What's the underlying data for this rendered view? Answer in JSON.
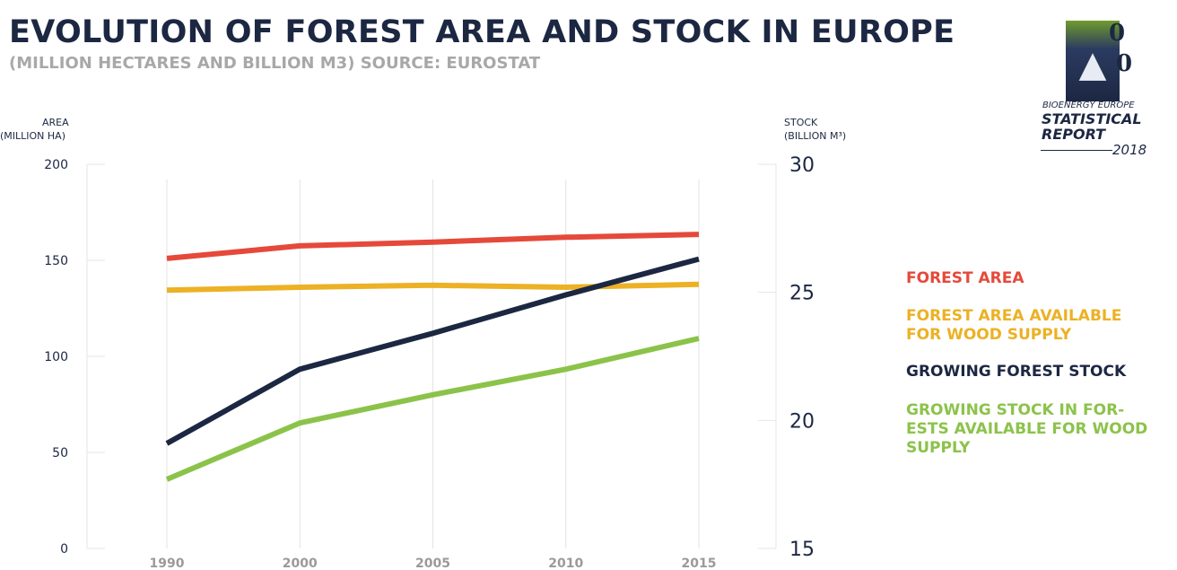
{
  "header": {
    "title": "EVOLUTION OF FOREST AREA AND STOCK IN EUROPE",
    "subtitle": "(MILLION HECTARES AND BILLION M3) SOURCE: EUROSTAT"
  },
  "logo": {
    "line1": "BIOENERGY EUROPE",
    "line2": "STATISTICAL",
    "line3": "REPORT",
    "year": "2018",
    "digits": [
      "0",
      "0"
    ]
  },
  "axes": {
    "left_title_line1": "AREA",
    "left_title_line2": "(MILLION HA)",
    "right_title_line1": "STOCK",
    "right_title_line2": "(BILLION M³)"
  },
  "chart_data": {
    "type": "line",
    "x": [
      "1990",
      "2000",
      "2005",
      "2010",
      "2015"
    ],
    "ylim_left": [
      0,
      200
    ],
    "yticks_left": [
      "0",
      "50",
      "100",
      "150",
      "200"
    ],
    "ylim_right": [
      15,
      30
    ],
    "yticks_right": [
      "15",
      "20",
      "25",
      "30"
    ],
    "grid": "vertical",
    "legend_position": "right",
    "series": [
      {
        "name": "FOREST AREA",
        "axis": "left",
        "color": "#e5493a",
        "values": [
          151,
          157.5,
          159.5,
          162,
          163.5
        ]
      },
      {
        "name": "FOREST AREA AVAILABLE\nFOR WOOD SUPPLY",
        "axis": "left",
        "color": "#ecb124",
        "values": [
          134.5,
          136,
          137,
          136,
          137.5
        ]
      },
      {
        "name": "GROWING FOREST STOCK",
        "axis": "right",
        "color": "#1c2742",
        "values": [
          19.1,
          22.0,
          23.4,
          24.9,
          26.3
        ]
      },
      {
        "name": "GROWING STOCK IN FOR-\nESTS AVAILABLE FOR WOOD\nSUPPLY",
        "axis": "right",
        "color": "#8bc34a",
        "values": [
          17.7,
          19.9,
          21.0,
          22.0,
          23.2
        ]
      }
    ]
  }
}
